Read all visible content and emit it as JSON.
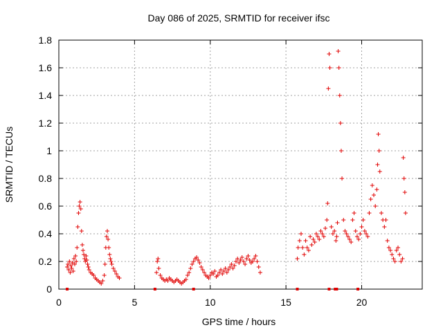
{
  "chart_data": {
    "type": "scatter",
    "title": "Day 086 of 2025, SRMTID for receiver ifsc",
    "xlabel": "GPS time / hours",
    "ylabel": "SRMTID / TECUs",
    "xlim": [
      0,
      24
    ],
    "ylim": [
      0,
      1.8
    ],
    "xticks": [
      0,
      5,
      10,
      15,
      20
    ],
    "xtick_labels": [
      "0",
      "5",
      "10",
      "15",
      "20"
    ],
    "yticks": [
      0,
      0.2,
      0.4,
      0.6,
      0.8,
      1.0,
      1.2,
      1.4,
      1.6,
      1.8
    ],
    "ytick_labels": [
      "0",
      "0.2",
      "0.4",
      "0.6",
      "0.8",
      "1",
      "1.2",
      "1.4",
      "1.6",
      "1.8"
    ],
    "grid": true,
    "marker": "+",
    "color": "#e00000",
    "series": [
      {
        "name": "SRMTID",
        "x": [
          0.55,
          0.6,
          0.65,
          0.7,
          0.75,
          0.8,
          0.85,
          0.9,
          0.95,
          1.0,
          1.05,
          1.1,
          1.15,
          1.2,
          1.25,
          1.3,
          1.35,
          1.4,
          1.45,
          1.5,
          1.55,
          1.6,
          1.65,
          1.7,
          1.75,
          1.8,
          1.85,
          1.9,
          1.95,
          2.0,
          2.1,
          2.2,
          2.3,
          2.4,
          2.5,
          2.6,
          2.7,
          2.8,
          2.9,
          3.0,
          3.05,
          3.1,
          3.15,
          3.2,
          3.25,
          3.3,
          3.35,
          3.4,
          3.45,
          3.5,
          3.6,
          3.7,
          3.8,
          3.9,
          4.0,
          6.45,
          6.5,
          6.55,
          6.6,
          6.7,
          6.8,
          6.9,
          7.0,
          7.1,
          7.2,
          7.3,
          7.4,
          7.5,
          7.6,
          7.7,
          7.8,
          7.9,
          8.0,
          8.1,
          8.2,
          8.3,
          8.4,
          8.5,
          8.6,
          8.7,
          8.8,
          8.9,
          9.0,
          9.1,
          9.2,
          9.3,
          9.4,
          9.5,
          9.6,
          9.7,
          9.8,
          9.9,
          10.0,
          10.1,
          10.2,
          10.3,
          10.4,
          10.5,
          10.6,
          10.7,
          10.8,
          10.9,
          11.0,
          11.1,
          11.2,
          11.3,
          11.4,
          11.5,
          11.6,
          11.7,
          11.8,
          11.9,
          12.0,
          12.1,
          12.2,
          12.3,
          12.4,
          12.5,
          12.6,
          12.7,
          12.8,
          12.9,
          13.0,
          13.1,
          13.2,
          13.3,
          15.75,
          15.8,
          15.9,
          16.0,
          16.1,
          16.2,
          16.3,
          16.4,
          16.5,
          16.6,
          16.7,
          16.8,
          16.9,
          17.0,
          17.1,
          17.2,
          17.3,
          17.4,
          17.5,
          17.6,
          17.7,
          17.75,
          17.8,
          17.85,
          17.9,
          18.0,
          18.1,
          18.2,
          18.3,
          18.35,
          18.4,
          18.45,
          18.5,
          18.55,
          18.6,
          18.65,
          18.7,
          18.8,
          18.9,
          19.0,
          19.1,
          19.2,
          19.3,
          19.4,
          19.5,
          19.6,
          19.7,
          19.8,
          19.9,
          20.0,
          20.1,
          20.2,
          20.3,
          20.4,
          20.5,
          20.6,
          20.7,
          20.8,
          20.9,
          21.0,
          21.05,
          21.1,
          21.15,
          21.2,
          21.3,
          21.4,
          21.5,
          21.6,
          21.7,
          21.8,
          21.9,
          22.0,
          22.1,
          22.2,
          22.3,
          22.4,
          22.5,
          22.6,
          22.7,
          22.75,
          22.8,
          22.85,
          22.9
        ],
        "y": [
          0.16,
          0.18,
          0.14,
          0.2,
          0.12,
          0.17,
          0.15,
          0.19,
          0.13,
          0.22,
          0.18,
          0.24,
          0.2,
          0.3,
          0.45,
          0.55,
          0.6,
          0.63,
          0.58,
          0.42,
          0.32,
          0.28,
          0.25,
          0.22,
          0.2,
          0.24,
          0.21,
          0.18,
          0.16,
          0.14,
          0.12,
          0.11,
          0.1,
          0.08,
          0.07,
          0.06,
          0.05,
          0.04,
          0.06,
          0.1,
          0.18,
          0.3,
          0.38,
          0.42,
          0.36,
          0.3,
          0.25,
          0.22,
          0.2,
          0.18,
          0.15,
          0.13,
          0.11,
          0.09,
          0.08,
          0.12,
          0.2,
          0.22,
          0.15,
          0.1,
          0.08,
          0.07,
          0.06,
          0.07,
          0.06,
          0.08,
          0.07,
          0.06,
          0.05,
          0.06,
          0.07,
          0.06,
          0.05,
          0.04,
          0.05,
          0.06,
          0.07,
          0.1,
          0.12,
          0.15,
          0.18,
          0.2,
          0.22,
          0.23,
          0.21,
          0.19,
          0.16,
          0.14,
          0.12,
          0.1,
          0.09,
          0.08,
          0.1,
          0.12,
          0.11,
          0.13,
          0.09,
          0.1,
          0.12,
          0.14,
          0.11,
          0.13,
          0.15,
          0.12,
          0.14,
          0.16,
          0.18,
          0.15,
          0.17,
          0.2,
          0.22,
          0.19,
          0.21,
          0.23,
          0.2,
          0.18,
          0.22,
          0.24,
          0.21,
          0.19,
          0.2,
          0.22,
          0.24,
          0.2,
          0.16,
          0.12,
          0.22,
          0.3,
          0.35,
          0.4,
          0.3,
          0.25,
          0.35,
          0.3,
          0.28,
          0.38,
          0.32,
          0.36,
          0.34,
          0.4,
          0.38,
          0.36,
          0.42,
          0.4,
          0.38,
          0.44,
          0.5,
          0.62,
          1.45,
          1.7,
          1.6,
          0.45,
          0.4,
          0.42,
          0.35,
          0.38,
          0.48,
          1.72,
          1.6,
          1.4,
          1.2,
          1.0,
          0.8,
          0.5,
          0.42,
          0.4,
          0.38,
          0.36,
          0.34,
          0.5,
          0.55,
          0.42,
          0.38,
          0.36,
          0.4,
          0.45,
          0.5,
          0.42,
          0.4,
          0.38,
          0.55,
          0.65,
          0.75,
          0.68,
          0.6,
          0.72,
          0.9,
          1.12,
          1.0,
          0.85,
          0.55,
          0.5,
          0.45,
          0.5,
          0.35,
          0.3,
          0.28,
          0.25,
          0.22,
          0.2,
          0.28,
          0.3,
          0.25,
          0.2,
          0.22,
          0.95,
          0.8,
          0.7,
          0.55
        ]
      }
    ],
    "gap_markers_x": [
      0.55,
      6.35,
      8.9,
      15.75,
      17.85,
      18.25,
      18.35,
      19.75
    ]
  }
}
